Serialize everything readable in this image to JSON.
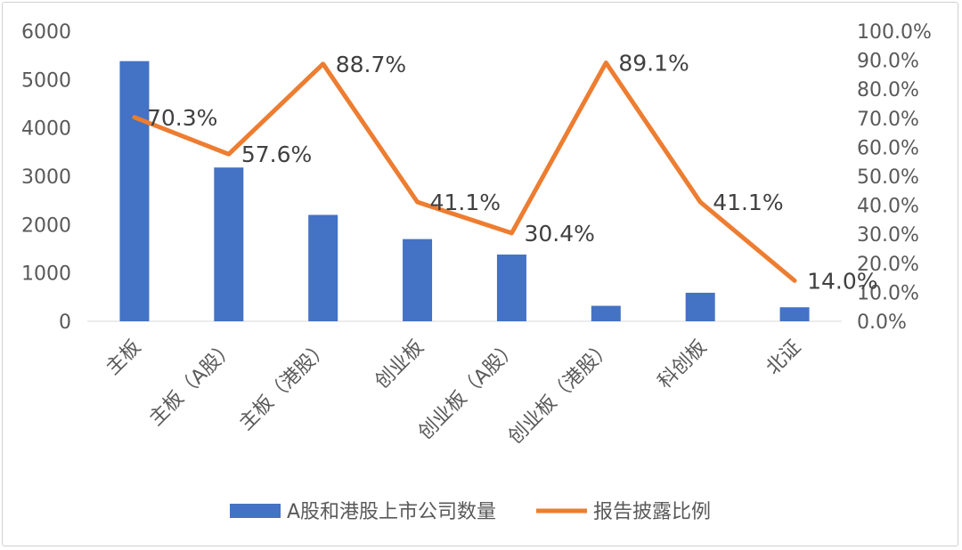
{
  "chart_data": {
    "type": "bar",
    "categories": [
      "主板",
      "主板（A股）",
      "主板（港股）",
      "创业板",
      "创业板（A股）",
      "创业板（港股）",
      "科创板",
      "北证"
    ],
    "series": [
      {
        "name": "A股和港股上市公司数量",
        "type": "bar",
        "axis": "left",
        "values": [
          5380,
          3180,
          2200,
          1700,
          1380,
          320,
          590,
          290
        ]
      },
      {
        "name": "报告披露比例",
        "type": "line",
        "axis": "right",
        "values": [
          70.3,
          57.6,
          88.7,
          41.1,
          30.4,
          89.1,
          41.1,
          14.0
        ],
        "labels": [
          "70.3%",
          "57.6%",
          "88.7%",
          "41.1%",
          "30.4%",
          "89.1%",
          "41.1%",
          "14.0%"
        ]
      }
    ],
    "left_axis": {
      "min": 0,
      "max": 6000,
      "step": 1000,
      "ticks": [
        "0",
        "1000",
        "2000",
        "3000",
        "4000",
        "5000",
        "6000"
      ]
    },
    "right_axis": {
      "min": 0,
      "max": 100,
      "step": 10,
      "ticks": [
        "0.0%",
        "10.0%",
        "20.0%",
        "30.0%",
        "40.0%",
        "50.0%",
        "60.0%",
        "70.0%",
        "80.0%",
        "90.0%",
        "100.0%"
      ]
    },
    "legend_position": "bottom",
    "grid": false,
    "colors": {
      "bar": "#4472C4",
      "line": "#ED7D31"
    }
  }
}
